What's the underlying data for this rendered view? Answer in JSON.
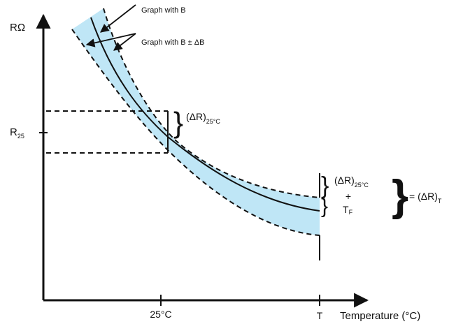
{
  "colors": {
    "band_fill": "#bfe6f6",
    "ink": "#111111"
  },
  "axes": {
    "y_label": "RΩ",
    "x_label": "Temperature (°C)",
    "y_tick_main": "R",
    "y_tick_sub": "25",
    "x_tick_1": "25°C",
    "x_tick_2": "T"
  },
  "annotations": {
    "graph_b": "Graph with B",
    "graph_b_delta": "Graph with B ± ΔB",
    "delta_r_25_main": "(ΔR)",
    "delta_r_25_sub": "25°C",
    "delta_r_25_t_main": "(ΔR)",
    "delta_r_25_t_sub": "25°C",
    "plus": "+",
    "tf_main": "T",
    "tf_sub": "F",
    "equals_main": "= (ΔR)",
    "equals_sub": "T"
  }
}
